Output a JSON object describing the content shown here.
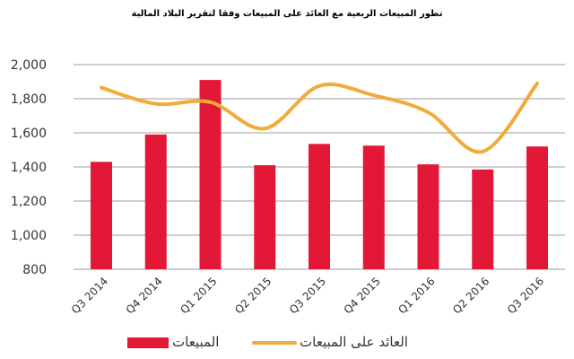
{
  "title": "تطور المبيعات الربعية مع العائد على المبيعات وفقا لتقرير البلاد المالية",
  "legend": {
    "bar_label": "المبيعات",
    "line_label": "العائد على المبيعات"
  },
  "colors": {
    "bar": "#E31837",
    "line": "#F0AB3A",
    "grid": "#BDBDBD"
  },
  "chart_data": {
    "type": "bar",
    "title": "تطور المبيعات الربعية مع العائد على المبيعات وفقا لتقرير البلاد المالية",
    "xlabel": "",
    "ylabel": "",
    "ylim": [
      800,
      2000
    ],
    "yticks": [
      "800",
      "1,000",
      "1,200",
      "1,400",
      "1,600",
      "1,800",
      "2,000"
    ],
    "grid": true,
    "legend_position": "bottom",
    "categories": [
      "Q3 2014",
      "Q4 2014",
      "Q1 2015",
      "Q2 2015",
      "Q3 2015",
      "Q4 2015",
      "Q1 2016",
      "Q2 2016",
      "Q3 2016"
    ],
    "series": [
      {
        "name": "المبيعات",
        "type": "bar",
        "values": [
          1430,
          1590,
          1910,
          1410,
          1535,
          1525,
          1415,
          1385,
          1520
        ]
      },
      {
        "name": "العائد على المبيعات",
        "type": "line",
        "values": [
          1865,
          1770,
          1780,
          1625,
          1875,
          1820,
          1720,
          1490,
          1890
        ]
      }
    ]
  }
}
